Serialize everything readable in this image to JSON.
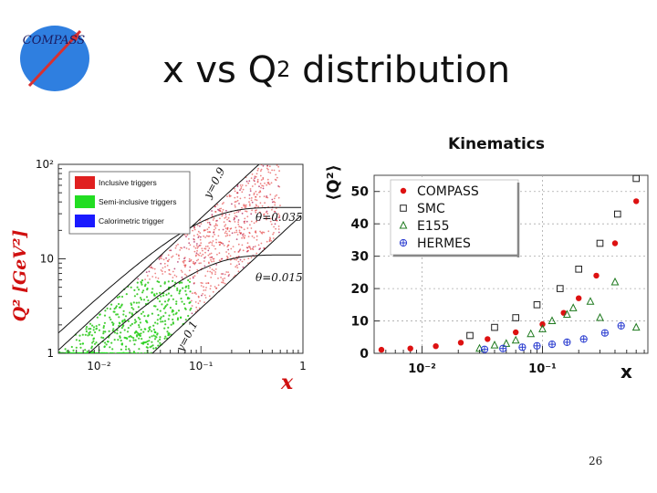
{
  "slide": {
    "title": "x vs Q",
    "title_sup": "2",
    "title_tail": " distribution",
    "page_number": "26",
    "logo_text": "COMPASS"
  },
  "chart_data": [
    {
      "type": "scatter",
      "title": "",
      "xlabel": "x",
      "ylabel": "Q² [GeV²]",
      "x_scale": "log",
      "y_scale": "log",
      "xlim": [
        0.004,
        1
      ],
      "ylim": [
        1,
        100
      ],
      "x_ticks": [
        "10⁻²",
        "10⁻¹",
        "1"
      ],
      "y_ticks": [
        "1",
        "10",
        "10²"
      ],
      "legend": {
        "placement": "top-left",
        "items": [
          {
            "name": "Inclusive triggers",
            "color": "#e02020"
          },
          {
            "name": "Semi-inclusive triggers",
            "color": "#22dd22"
          },
          {
            "name": "Calorimetric trigger",
            "color": "#1a1aff"
          }
        ]
      },
      "annotations": [
        "y=0.9",
        "θ=0.035",
        "θ=0.015",
        "y=0.1"
      ]
    },
    {
      "type": "scatter",
      "title": "Kinematics",
      "xlabel": "x",
      "ylabel": "⟨Q²⟩",
      "x_scale": "log",
      "xlim": [
        0.004,
        0.75
      ],
      "ylim": [
        0,
        55
      ],
      "x_ticks": [
        "10⁻²",
        "10⁻¹"
      ],
      "y_ticks": [
        "0",
        "10",
        "20",
        "30",
        "40",
        "50"
      ],
      "grid": true,
      "legend": {
        "placement": "top-left"
      },
      "series": [
        {
          "name": "COMPASS",
          "marker": "filled-circle",
          "color": "#dd1111",
          "x": [
            0.0046,
            0.008,
            0.013,
            0.021,
            0.035,
            0.06,
            0.1,
            0.15,
            0.2,
            0.28,
            0.4,
            0.6
          ],
          "y": [
            1.1,
            1.5,
            2.2,
            3.3,
            4.4,
            6.5,
            9.0,
            12.5,
            17.0,
            24.0,
            34.0,
            47.0
          ]
        },
        {
          "name": "SMC",
          "marker": "open-square",
          "color": "#222222",
          "x": [
            0.025,
            0.04,
            0.06,
            0.09,
            0.14,
            0.2,
            0.3,
            0.42,
            0.6
          ],
          "y": [
            5.5,
            8.0,
            11.0,
            15.0,
            20.0,
            26.0,
            34.0,
            43.0,
            54.0
          ]
        },
        {
          "name": "E155",
          "marker": "open-triangle",
          "color": "#1f7a1f",
          "x": [
            0.03,
            0.04,
            0.05,
            0.06,
            0.08,
            0.1,
            0.12,
            0.16,
            0.18,
            0.25,
            0.3,
            0.4,
            0.6
          ],
          "y": [
            1.5,
            2.5,
            3.0,
            4.0,
            6.0,
            7.5,
            10.0,
            12.0,
            14.0,
            16.0,
            11.0,
            22.0,
            8.0
          ]
        },
        {
          "name": "HERMES",
          "marker": "open-cross-circle",
          "color": "#2a3cd0",
          "x": [
            0.033,
            0.047,
            0.068,
            0.09,
            0.12,
            0.16,
            0.22,
            0.33,
            0.45
          ],
          "y": [
            1.2,
            1.5,
            1.9,
            2.3,
            2.8,
            3.4,
            4.4,
            6.3,
            8.5
          ]
        }
      ]
    }
  ]
}
